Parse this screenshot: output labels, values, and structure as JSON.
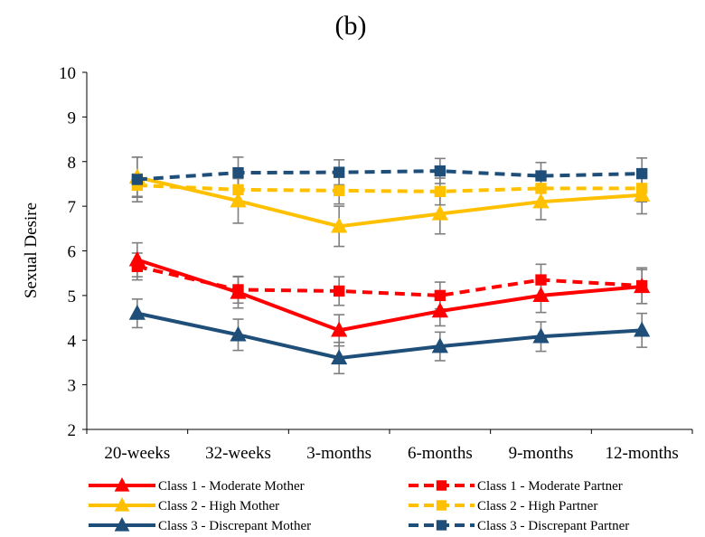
{
  "chart_data": {
    "type": "line",
    "title": "(b)",
    "ylabel": "Sexual Desire",
    "xlabel": "",
    "ylim": [
      2,
      10
    ],
    "yticks": [
      2,
      3,
      4,
      5,
      6,
      7,
      8,
      9,
      10
    ],
    "categories": [
      "20-weeks",
      "32-weeks",
      "3-months",
      "6-months",
      "9-months",
      "12-months"
    ],
    "grid": false,
    "legend_position": "bottom",
    "series": [
      {
        "name": "Class 1 - Moderate Mother",
        "color": "#ff0000",
        "dashed": false,
        "marker": "triangle",
        "values": [
          5.8,
          5.07,
          4.22,
          4.65,
          5.0,
          5.2
        ],
        "error": [
          0.38,
          0.35,
          0.35,
          0.33,
          0.38,
          0.38
        ]
      },
      {
        "name": "Class 1 - Moderate Partner",
        "color": "#ff0000",
        "dashed": true,
        "marker": "square",
        "values": [
          5.65,
          5.13,
          5.1,
          5.0,
          5.35,
          5.22
        ],
        "error": [
          0.3,
          0.3,
          0.32,
          0.3,
          0.35,
          0.4
        ]
      },
      {
        "name": "Class 2 - High Mother",
        "color": "#ffc000",
        "dashed": false,
        "marker": "triangle",
        "values": [
          7.65,
          7.12,
          6.55,
          6.83,
          7.1,
          7.25
        ],
        "error": [
          0.45,
          0.5,
          0.45,
          0.45,
          0.4,
          0.42
        ]
      },
      {
        "name": "Class 2 - High Partner",
        "color": "#ffc000",
        "dashed": true,
        "marker": "square",
        "values": [
          7.47,
          7.37,
          7.35,
          7.33,
          7.4,
          7.4
        ],
        "error": [
          0.25,
          0.3,
          0.3,
          0.3,
          0.3,
          0.3
        ]
      },
      {
        "name": "Class 3 - Discrepant Mother",
        "color": "#1f4e79",
        "dashed": false,
        "marker": "triangle",
        "values": [
          4.6,
          4.12,
          3.6,
          3.86,
          4.08,
          4.22
        ],
        "error": [
          0.32,
          0.35,
          0.35,
          0.32,
          0.33,
          0.38
        ]
      },
      {
        "name": "Class 3 - Discrepant Partner",
        "color": "#1f4e79",
        "dashed": true,
        "marker": "square",
        "values": [
          7.6,
          7.75,
          7.76,
          7.79,
          7.68,
          7.73
        ],
        "error": [
          0.5,
          0.35,
          0.28,
          0.28,
          0.3,
          0.35
        ]
      }
    ]
  }
}
